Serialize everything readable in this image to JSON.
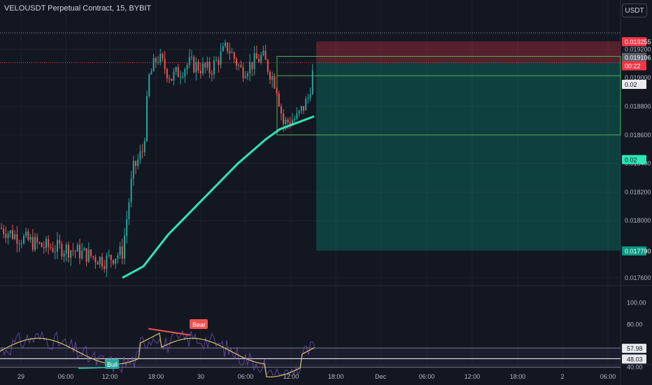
{
  "header": {
    "title": "VELOUSDT Perpetual Contract, 15, BYBIT",
    "currency": "USDT"
  },
  "colors": {
    "background": "#131722",
    "grid": "#1e222d",
    "up": "#26a69a",
    "down": "#ef5350",
    "ma": "#2ee6b5",
    "stop": "#f23645",
    "target": "#089981",
    "rsi": "#7e57c2",
    "rsi_ma": "#d4c468",
    "axis_text": "#b2b5be"
  },
  "price_axis": {
    "ticks": [
      "0.019200",
      "0.019000",
      "0.018800",
      "0.018600",
      "0.018400",
      "0.018200",
      "0.018000",
      "0.017600"
    ],
    "labels": [
      {
        "text": "0.019255",
        "bg": "#f23645",
        "fg": "#ffffff"
      },
      {
        "text": "0.019106",
        "bg": "#5d606b",
        "fg": "#ffffff"
      },
      {
        "text": "00:22",
        "bg": "#f23645",
        "fg": "#ffffff"
      },
      {
        "text": "0.02",
        "bg": "#e8eaed",
        "fg": "#131722"
      },
      {
        "text": "0.02",
        "bg": "#2ee6b5",
        "fg": "#131722"
      },
      {
        "text": "0.017790",
        "bg": "#089981",
        "fg": "#ffffff"
      }
    ]
  },
  "rsi_axis": {
    "ticks": [
      "100.00",
      "80.00",
      "40.00"
    ],
    "labels": [
      {
        "text": "57.98",
        "bg": "#e8eaed",
        "fg": "#131722"
      },
      {
        "text": "48.03",
        "bg": "#e8eaed",
        "fg": "#131722"
      }
    ],
    "bear_label": "Bear",
    "bull_label": "Bull"
  },
  "time_axis": [
    "29",
    "06:00",
    "12:00",
    "18:00",
    "30",
    "06:00",
    "12:00",
    "18:00",
    "Dec",
    "06:00",
    "12:00",
    "18:00",
    "2",
    "06:00"
  ],
  "chart_data": {
    "type": "line",
    "title": "VELOUSDT Perpetual Contract, 15, BYBIT",
    "timeframe": "15",
    "ylim": [
      0.01755,
      0.01929
    ],
    "series": [
      {
        "name": "close (approx)",
        "x": [
          "29 00:00",
          "29 06:00",
          "29 12:00",
          "29 18:00",
          "30 00:00",
          "30 06:00",
          "30 12:00",
          "30 14:45"
        ],
        "values": [
          0.0179,
          0.01782,
          0.01772,
          0.019,
          0.01918,
          0.01912,
          0.01878,
          0.01911
        ]
      },
      {
        "name": "moving average (approx)",
        "x": [
          "29 12:00",
          "29 18:00",
          "30 00:00",
          "30 06:00",
          "30 12:00",
          "30 14:45"
        ],
        "values": [
          0.0176,
          0.01799,
          0.01835,
          0.01865,
          0.01838,
          0.01843
        ]
      }
    ],
    "position": {
      "stop": 0.019255,
      "entry": 0.019106,
      "target": 0.01779,
      "qty_label": "0.02"
    },
    "current_price": 0.019106,
    "rsi_panel": {
      "ylim": [
        30,
        105
      ],
      "upper_band": 57.98,
      "lower_band": 48.03,
      "ticks": [
        100,
        80,
        40
      ]
    }
  }
}
